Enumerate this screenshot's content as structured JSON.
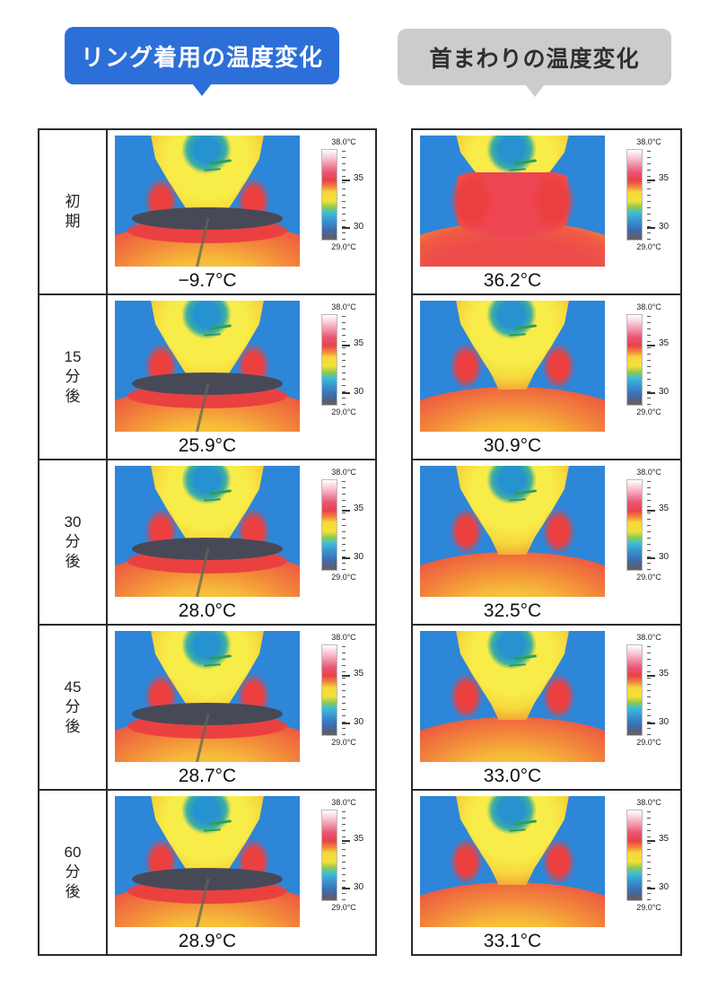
{
  "headers": {
    "left": {
      "label": "リング着用の温度変化"
    },
    "right": {
      "label": "首まわりの温度変化"
    }
  },
  "colors": {
    "accent_blue": "#2d6fd9",
    "bubble_gray": "#cccccc",
    "thermal_background_blue": "#2e86d8",
    "table_line": "#2a2a2a"
  },
  "scale": {
    "top": "38.0°C",
    "mid_high": "35",
    "mid_low": "30",
    "bottom": "29.0°C"
  },
  "rows": [
    {
      "label": "初期",
      "left_temp": "−9.7°C",
      "right_temp": "36.2°C"
    },
    {
      "label": "15分後",
      "left_temp": "25.9°C",
      "right_temp": "30.9°C"
    },
    {
      "label": "30分後",
      "left_temp": "28.0°C",
      "right_temp": "32.5°C"
    },
    {
      "label": "45分後",
      "left_temp": "28.7°C",
      "right_temp": "33.0°C"
    },
    {
      "label": "60分後",
      "left_temp": "28.9°C",
      "right_temp": "33.1°C"
    }
  ]
}
